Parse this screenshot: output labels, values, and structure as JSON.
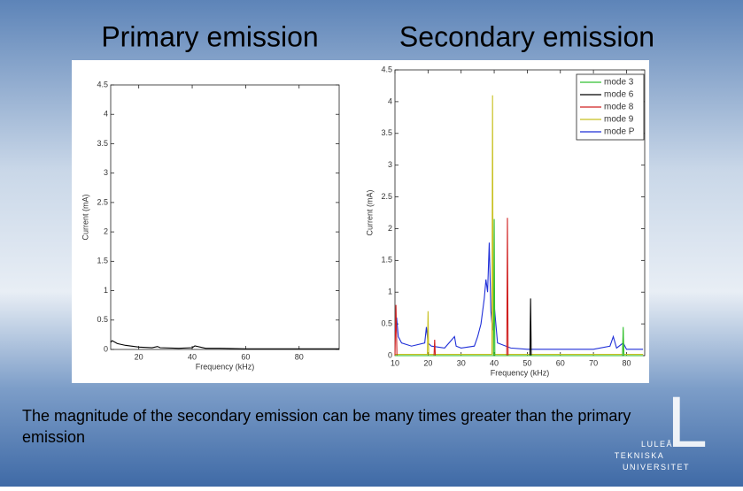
{
  "slide": {
    "headings": [
      "Primary emission",
      "Secondary emission"
    ],
    "body": "The magnitude of the secondary emission can be many times greater than the primary emission",
    "logo": [
      "LULEÅ",
      "TEKNISKA",
      "UNIVERSITET"
    ]
  },
  "chart_data": [
    {
      "type": "line",
      "x_label": "Frequency (kHz)",
      "y_label": "Current (mA)",
      "xlim": [
        9.5,
        95
      ],
      "xticks": [
        20,
        40,
        60,
        80
      ],
      "ylim": [
        0,
        4.5
      ],
      "yticks": [
        0,
        0.5,
        1,
        1.5,
        2,
        2.5,
        3,
        3.5,
        4,
        4.5
      ],
      "series": [
        {
          "color": "#000000",
          "x": [
            9.5,
            10,
            12,
            15,
            20,
            25,
            27,
            28,
            35,
            40,
            41,
            45,
            50,
            60,
            70,
            80,
            90,
            95
          ],
          "values": [
            0.12,
            0.15,
            0.1,
            0.07,
            0.04,
            0.03,
            0.05,
            0.03,
            0.02,
            0.03,
            0.06,
            0.02,
            0.02,
            0.01,
            0.01,
            0.01,
            0.01,
            0.01
          ]
        }
      ]
    },
    {
      "type": "line",
      "x_label": "Frequency (kHz)",
      "y_label": "Current (mA)",
      "xlim": [
        10,
        85.5
      ],
      "xticks": [
        10,
        20,
        30,
        40,
        50,
        60,
        70,
        80
      ],
      "ylim": [
        0,
        4.5
      ],
      "yticks": [
        0,
        0.5,
        1,
        1.5,
        2,
        2.5,
        3,
        3.5,
        4,
        4.5
      ],
      "series": [
        {
          "name": "mode P",
          "color": "#1f2fd8",
          "x": [
            10,
            10.5,
            11,
            12,
            15,
            19,
            19.5,
            20,
            21,
            25,
            28,
            28.5,
            30,
            34,
            35,
            36,
            37,
            37.5,
            38,
            38.5,
            39,
            39.5,
            40,
            41,
            45,
            50,
            55,
            60,
            65,
            70,
            75,
            76,
            77,
            79,
            80,
            85
          ],
          "values": [
            0.4,
            0.6,
            0.3,
            0.2,
            0.15,
            0.2,
            0.45,
            0.2,
            0.15,
            0.12,
            0.3,
            0.15,
            0.12,
            0.15,
            0.3,
            0.5,
            0.9,
            1.2,
            1.0,
            1.78,
            0.7,
            0.4,
            0.8,
            0.2,
            0.12,
            0.1,
            0.1,
            0.1,
            0.1,
            0.1,
            0.15,
            0.3,
            0.12,
            0.2,
            0.1,
            0.1
          ]
        },
        {
          "name": "mode 9",
          "color": "#c8c020",
          "x": [
            10,
            19.8,
            20,
            20.2,
            39.3,
            39.5,
            39.7,
            78.8,
            79,
            79.2,
            85
          ],
          "values": [
            0.02,
            0.02,
            0.7,
            0.02,
            0.02,
            4.1,
            0.02,
            0.02,
            0.4,
            0.02,
            0.02
          ]
        },
        {
          "name": "mode 8",
          "color": "#d02020",
          "x": [
            10,
            10.3,
            10.6,
            21.8,
            22,
            22.2,
            43.8,
            44,
            44.2,
            85
          ],
          "values": [
            0,
            0.8,
            0,
            0,
            0.25,
            0,
            0,
            2.17,
            0,
            0
          ]
        },
        {
          "name": "mode 6",
          "color": "#000000",
          "x": [
            10,
            50.8,
            51,
            51.2,
            85
          ],
          "values": [
            0,
            0,
            0.9,
            0,
            0
          ]
        },
        {
          "name": "mode 3",
          "color": "#30c030",
          "x": [
            10,
            39.8,
            40,
            40.2,
            78.8,
            79,
            79.2,
            85
          ],
          "values": [
            0,
            0,
            2.15,
            0,
            0,
            0.45,
            0,
            0
          ]
        }
      ],
      "legend_order": [
        4,
        3,
        2,
        1,
        0
      ],
      "legend": "upper right"
    }
  ]
}
